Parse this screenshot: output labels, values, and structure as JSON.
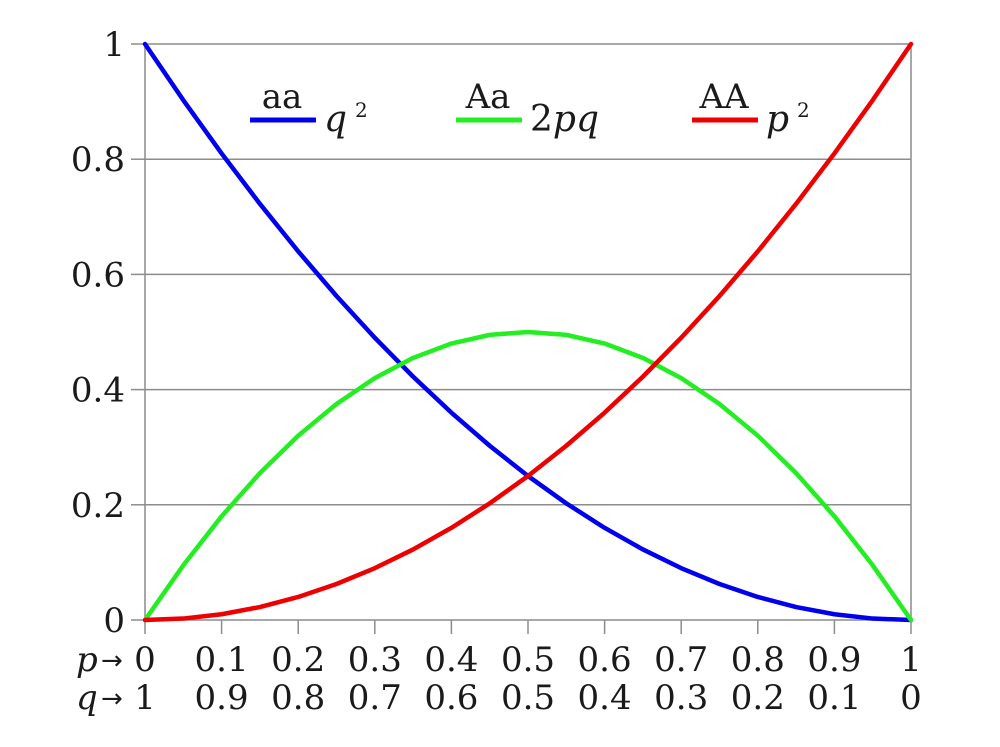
{
  "chart_data": {
    "type": "line",
    "title": "",
    "x_label_p": "p",
    "x_label_q": "q",
    "x_arrow": "→",
    "x_ticks_p": [
      "0",
      "0.1",
      "0.2",
      "0.3",
      "0.4",
      "0.5",
      "0.6",
      "0.7",
      "0.8",
      "0.9",
      "1"
    ],
    "x_ticks_q": [
      "1",
      "0.9",
      "0.8",
      "0.7",
      "0.6",
      "0.5",
      "0.4",
      "0.3",
      "0.2",
      "0.1",
      "0"
    ],
    "y_ticks": [
      "0",
      "0.2",
      "0.4",
      "0.6",
      "0.8",
      "1"
    ],
    "xlim": [
      0,
      1
    ],
    "ylim": [
      0,
      1
    ],
    "grid": "horizontal",
    "legend_position": "top",
    "x": [
      0,
      0.05,
      0.1,
      0.15,
      0.2,
      0.25,
      0.3,
      0.35,
      0.4,
      0.45,
      0.5,
      0.55,
      0.6,
      0.65,
      0.7,
      0.75,
      0.8,
      0.85,
      0.9,
      0.95,
      1
    ],
    "series": [
      {
        "name": "aa",
        "formula": "q",
        "exponent": "2",
        "color": "#0000ee",
        "values": [
          1,
          0.9025,
          0.81,
          0.7225,
          0.64,
          0.5625,
          0.49,
          0.4225,
          0.36,
          0.3025,
          0.25,
          0.2025,
          0.16,
          0.1225,
          0.09,
          0.0625,
          0.04,
          0.0225,
          0.01,
          0.0025,
          0
        ]
      },
      {
        "name": "Aa",
        "formula": "2pq",
        "exponent": "",
        "color": "#22ee22",
        "values": [
          0,
          0.095,
          0.18,
          0.255,
          0.32,
          0.375,
          0.42,
          0.455,
          0.48,
          0.495,
          0.5,
          0.495,
          0.48,
          0.455,
          0.42,
          0.375,
          0.32,
          0.255,
          0.18,
          0.095,
          0
        ]
      },
      {
        "name": "AA",
        "formula": "p",
        "exponent": "2",
        "color": "#ee0000",
        "values": [
          0,
          0.0025,
          0.01,
          0.0225,
          0.04,
          0.0625,
          0.09,
          0.1225,
          0.16,
          0.2025,
          0.25,
          0.3025,
          0.36,
          0.4225,
          0.49,
          0.5625,
          0.64,
          0.7225,
          0.81,
          0.9025,
          1
        ]
      }
    ]
  }
}
